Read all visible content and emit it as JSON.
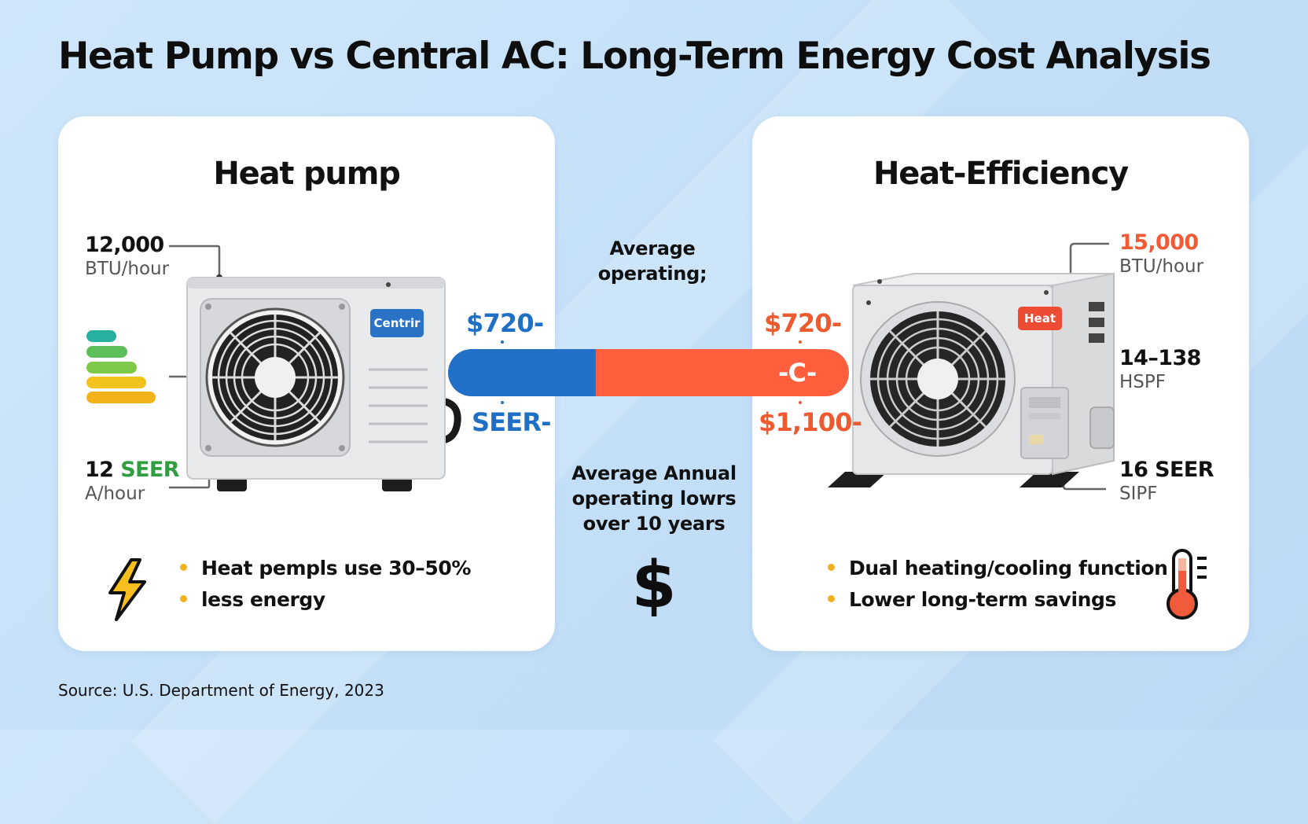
{
  "title": "Heat Pump vs Central AC: Long-Term Energy Cost Analysis",
  "left_card": {
    "heading": "Heat pump",
    "btu_value": "12,000",
    "btu_unit": "BTU/hour",
    "seer_number": "12",
    "seer_word": "SEER",
    "seer_unit": "A/hour",
    "unit_badge": "Centrir",
    "bullets": [
      "Heat pempls use 30–50%",
      "less energy"
    ],
    "icon": "lightning-bolt-icon"
  },
  "right_card": {
    "heading": "Heat-Efficiency",
    "btu_value": "15,000",
    "btu_unit": "BTU/hour",
    "hspf_value": "14–138",
    "hspf_unit": "HSPF",
    "seer_value": "16 SEER",
    "seer_unit": "SIPF",
    "unit_badge": "Heat",
    "bullets": [
      "Dual heating/cooling function",
      "Lower long-term savings"
    ],
    "icon": "thermometer-icon"
  },
  "comparison": {
    "top_label": "Average\noperating;",
    "left_price": "$720-",
    "left_sub": "SEER-",
    "right_price": "$720-",
    "right_bar_text": "-C-",
    "right_sub": "$1,100-",
    "bottom_label": "Average Annual\noperating lowrs\nover 10 years",
    "currency_symbol": "$"
  },
  "colors": {
    "blue": "#2370c8",
    "red": "#ff5f3c",
    "badge_blue": "#2a72c6",
    "badge_red": "#ee4b35",
    "bullet_dot": "#f2b21e",
    "energy_bars": [
      "#27b0a0",
      "#5cbf5a",
      "#7ec84a",
      "#f2c31c",
      "#f4b21a"
    ]
  },
  "source": "Source: U.S. Department of Energy, 2023"
}
